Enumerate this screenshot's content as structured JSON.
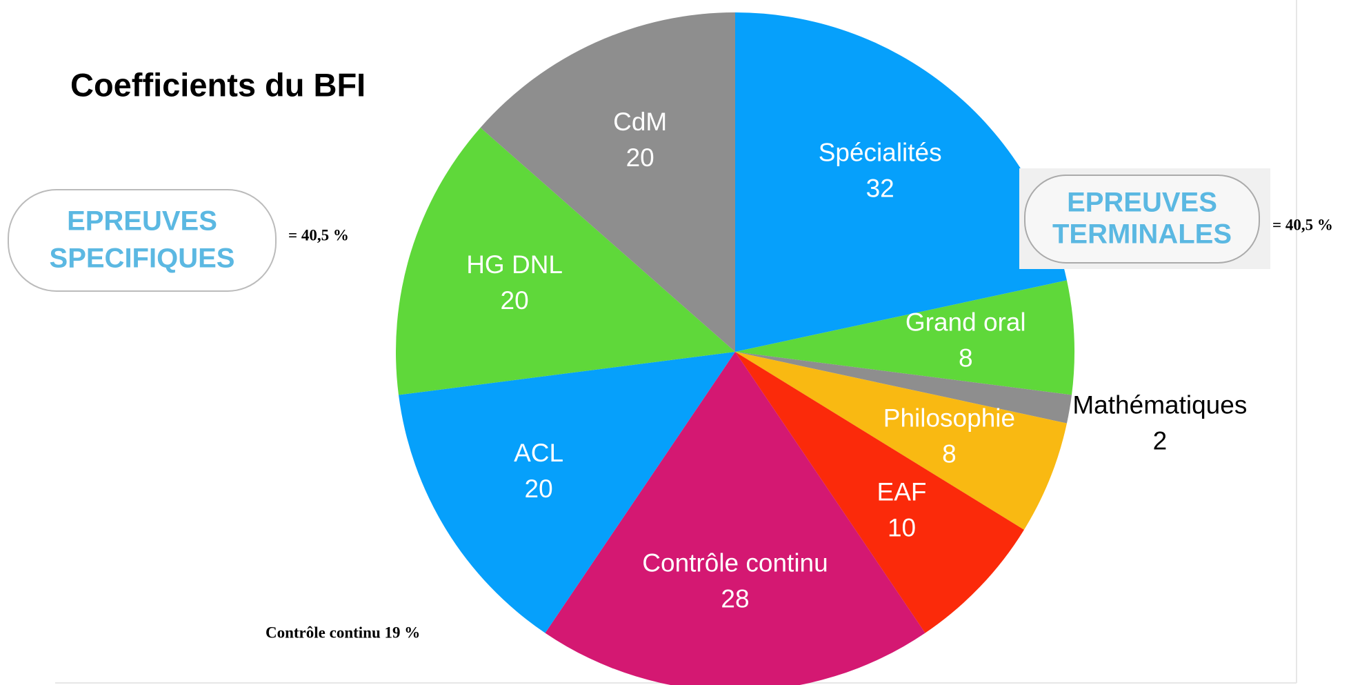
{
  "chart_data": {
    "type": "pie",
    "title": "Coefficients du BFI",
    "categories": [
      "Spécialités",
      "Grand oral",
      "Mathématiques",
      "Philosophie",
      "EAF",
      "Contrôle continu",
      "ACL",
      "HG DNL",
      "CdM"
    ],
    "values": [
      32,
      8,
      2,
      8,
      10,
      28,
      20,
      20,
      20
    ],
    "colors": [
      "#06a0fb",
      "#5fd83a",
      "#8e8e8e",
      "#f9b912",
      "#fb2a0a",
      "#d41872",
      "#06a0fb",
      "#5fd83a",
      "#8e8e8e"
    ],
    "annotations": [
      {
        "lines": [
          "EPREUVES",
          "SPECIFIQUES"
        ],
        "note": "= 40,5 %"
      },
      {
        "lines": [
          "EPREUVES",
          "TERMINALES"
        ],
        "note": "= 40,5 %"
      },
      {
        "note": "Contrôle continu 19 %"
      }
    ]
  }
}
